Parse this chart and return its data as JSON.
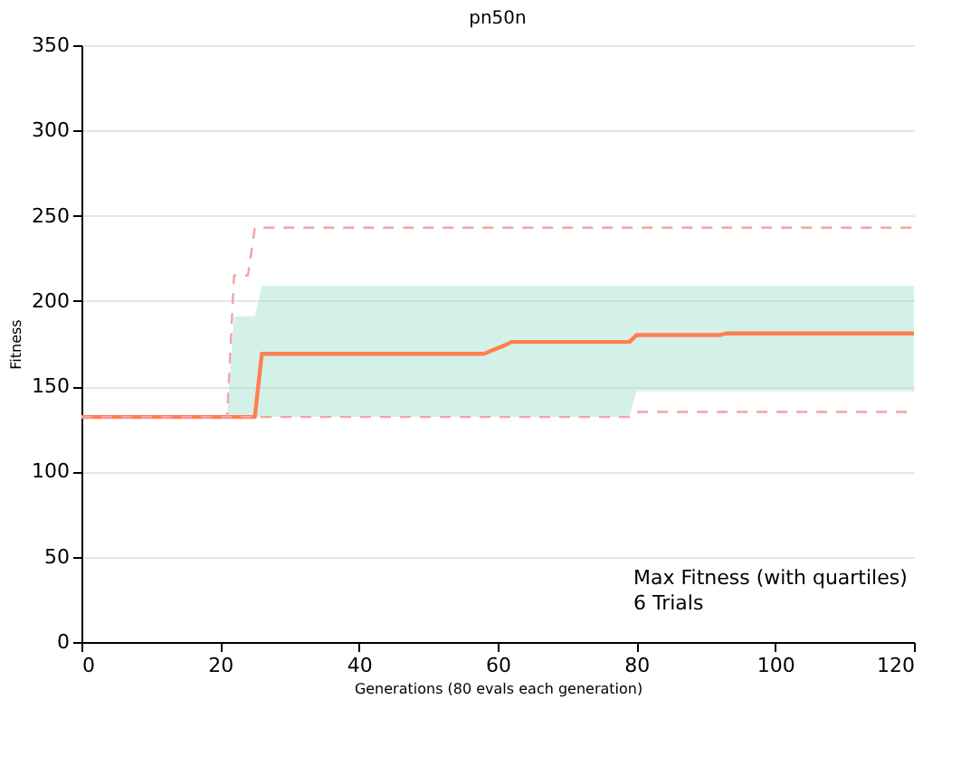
{
  "chart_data": {
    "type": "line",
    "title": "pn50n",
    "xlabel": "Generations (80 evals each generation)",
    "ylabel": "Fitness",
    "xlim": [
      0,
      120
    ],
    "xticks": [
      0,
      20,
      40,
      60,
      80,
      100,
      120
    ],
    "ylim": [
      0,
      350
    ],
    "yticks": [
      0,
      50,
      100,
      150,
      200,
      250,
      300,
      350
    ],
    "grid": "y",
    "marker": "none",
    "annotations": [
      "Max Fitness (with quartiles)",
      "6 Trials"
    ],
    "series": [
      {
        "color": "#ff7f50",
        "line_style": "solid",
        "x": [
          0,
          21,
          22,
          25,
          26,
          58,
          61,
          62,
          79,
          80,
          92,
          93,
          120
        ],
        "values": [
          132,
          132,
          132,
          132,
          169,
          169,
          174,
          176,
          176,
          180,
          180,
          181,
          181
        ],
        "lower": [
          132,
          132,
          132,
          132,
          132,
          132,
          132,
          132,
          132,
          147,
          147,
          147,
          147
        ],
        "upper": [
          132,
          132,
          191,
          191,
          209,
          209,
          209,
          209,
          209,
          209,
          209,
          209,
          209
        ]
      },
      {
        "color": "#f5a3a3",
        "line_style": "dashed",
        "x": [
          0,
          21,
          22,
          24,
          25,
          120
        ],
        "values": [
          132,
          132,
          215,
          215,
          243,
          243
        ]
      },
      {
        "color": "#f5a3a3",
        "line_style": "dashed",
        "x": [
          0,
          79,
          80,
          120
        ],
        "values": [
          132,
          132,
          135,
          135
        ]
      }
    ]
  }
}
